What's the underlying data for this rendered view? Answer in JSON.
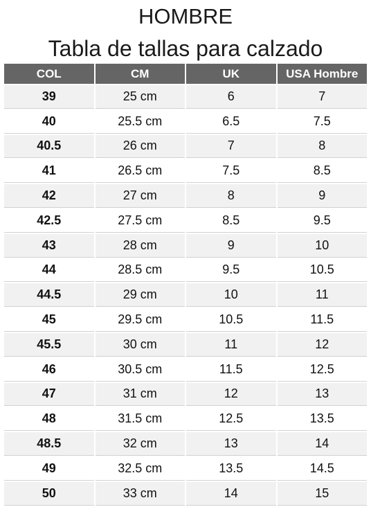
{
  "header": {
    "title": "HOMBRE",
    "subtitle": "Tabla de tallas para calzado"
  },
  "table": {
    "columns": [
      "COL",
      "CM",
      "UK",
      "USA Hombre"
    ],
    "rows": [
      [
        "39",
        "25 cm",
        "6",
        "7"
      ],
      [
        "40",
        "25.5 cm",
        "6.5",
        "7.5"
      ],
      [
        "40.5",
        "26 cm",
        "7",
        "8"
      ],
      [
        "41",
        "26.5 cm",
        "7.5",
        "8.5"
      ],
      [
        "42",
        "27 cm",
        "8",
        "9"
      ],
      [
        "42.5",
        "27.5 cm",
        "8.5",
        "9.5"
      ],
      [
        "43",
        "28 cm",
        "9",
        "10"
      ],
      [
        "44",
        "28.5 cm",
        "9.5",
        "10.5"
      ],
      [
        "44.5",
        "29 cm",
        "10",
        "11"
      ],
      [
        "45",
        "29.5 cm",
        "10.5",
        "11.5"
      ],
      [
        "45.5",
        "30 cm",
        "11",
        "12"
      ],
      [
        "46",
        "30.5 cm",
        "11.5",
        "12.5"
      ],
      [
        "47",
        "31 cm",
        "12",
        "13"
      ],
      [
        "48",
        "31.5 cm",
        "12.5",
        "13.5"
      ],
      [
        "48.5",
        "32 cm",
        "13",
        "14"
      ],
      [
        "49",
        "32.5 cm",
        "13.5",
        "14.5"
      ],
      [
        "50",
        "33 cm",
        "14",
        "15"
      ]
    ]
  },
  "colors": {
    "header_bg": "#656565",
    "header_text": "#ffffff",
    "row_alt_bg": "#f1f1f1"
  }
}
